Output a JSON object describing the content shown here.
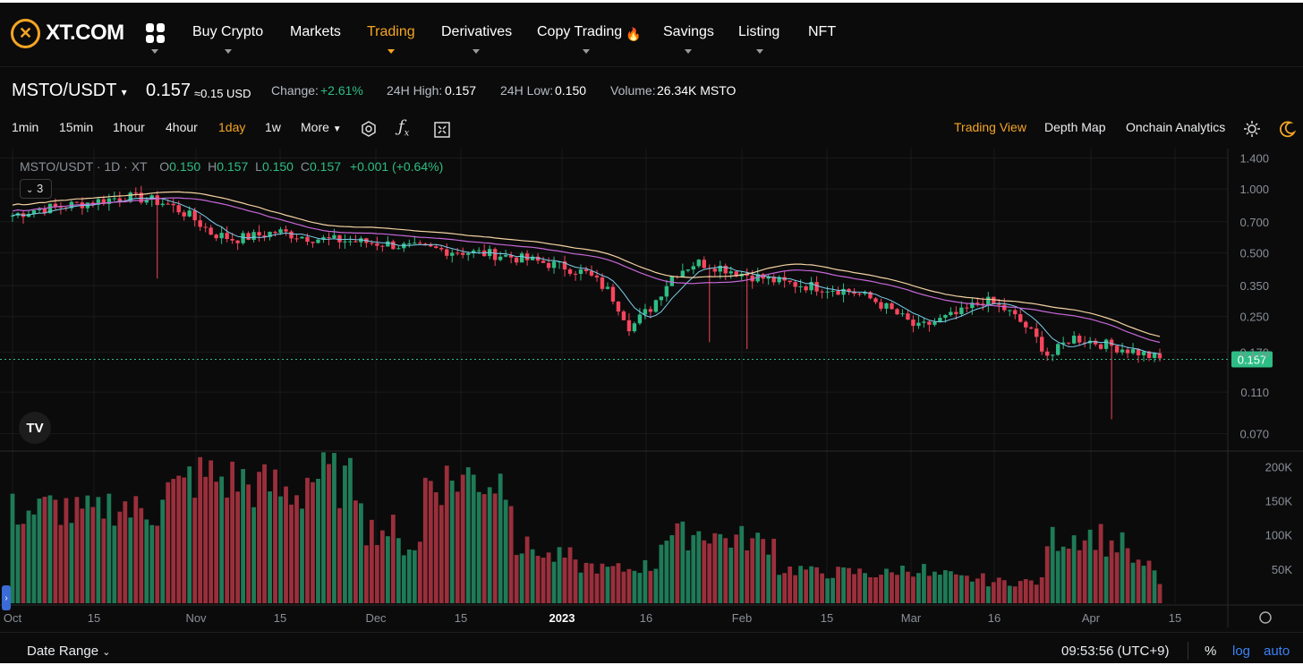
{
  "nav": {
    "logo": "XT.COM",
    "items": [
      "Buy Crypto",
      "Markets",
      "Trading",
      "Derivatives",
      "Copy Trading",
      "Savings",
      "Listing",
      "NFT"
    ],
    "active": "Trading"
  },
  "ticker": {
    "pair": "MSTO/USDT",
    "price": "0.157",
    "price_usd": "≈0.15 USD",
    "change_label": "Change:",
    "change_value": "+2.61%",
    "high_label": "24H High:",
    "high_value": "0.157",
    "low_label": "24H Low:",
    "low_value": "0.150",
    "volume_label": "Volume:",
    "volume_value": "26.34K MSTO"
  },
  "toolbar": {
    "intervals": [
      "1min",
      "15min",
      "1hour",
      "4hour",
      "1day",
      "1w"
    ],
    "active_interval": "1day",
    "more": "More",
    "views": [
      "Trading View",
      "Depth Map",
      "Onchain Analytics"
    ],
    "active_view": "Trading View"
  },
  "legend": {
    "symbol": "MSTO/USDT · 1D · XT",
    "open_label": "O",
    "open": "0.150",
    "high_label": "H",
    "high": "0.157",
    "low_label": "L",
    "low": "0.150",
    "close_label": "C",
    "close": "0.157",
    "delta": "+0.001 (+0.64%)",
    "indicator_count": "3"
  },
  "chart_data": {
    "type": "candlestick",
    "price_axis_ticks": [
      "1.400",
      "1.000",
      "0.700",
      "0.500",
      "0.350",
      "0.250",
      "0.170",
      "0.110",
      "0.070"
    ],
    "last_price_label": "0.157",
    "volume_axis_ticks": [
      "200K",
      "150K",
      "100K",
      "50K"
    ],
    "x_axis_ticks": [
      "Oct",
      "15",
      "Nov",
      "15",
      "Dec",
      "15",
      "2023",
      "16",
      "Feb",
      "15",
      "Mar",
      "16",
      "Apr",
      "15"
    ],
    "scale": "log",
    "close_path": [
      0.75,
      0.8,
      0.82,
      0.85,
      0.88,
      0.92,
      0.9,
      0.85,
      0.75,
      0.62,
      0.58,
      0.6,
      0.63,
      0.6,
      0.58,
      0.57,
      0.56,
      0.55,
      0.53,
      0.52,
      0.51,
      0.5,
      0.49,
      0.47,
      0.45,
      0.43,
      0.4,
      0.33,
      0.22,
      0.28,
      0.4,
      0.45,
      0.43,
      0.4,
      0.38,
      0.36,
      0.35,
      0.34,
      0.33,
      0.3,
      0.26,
      0.22,
      0.24,
      0.26,
      0.3,
      0.27,
      0.22,
      0.16,
      0.2,
      0.19,
      0.18,
      0.17,
      0.157
    ],
    "volume_pattern": [
      150,
      155,
      145,
      160,
      150,
      185,
      205,
      200,
      190,
      180,
      205,
      195,
      120,
      95,
      200,
      205,
      200,
      90,
      75,
      60,
      55,
      60,
      110,
      115,
      105,
      100,
      55,
      50,
      50,
      48,
      55,
      45,
      40,
      35,
      35,
      105,
      110,
      95,
      60,
      30
    ]
  },
  "bottom": {
    "date_range": "Date Range",
    "time": "09:53:56 (UTC+9)",
    "percent": "%",
    "log": "log",
    "auto": "auto"
  },
  "colors": {
    "up": "#2ebd85",
    "down": "#f6465d",
    "accent": "#f5a524",
    "link": "#3b82f6"
  }
}
